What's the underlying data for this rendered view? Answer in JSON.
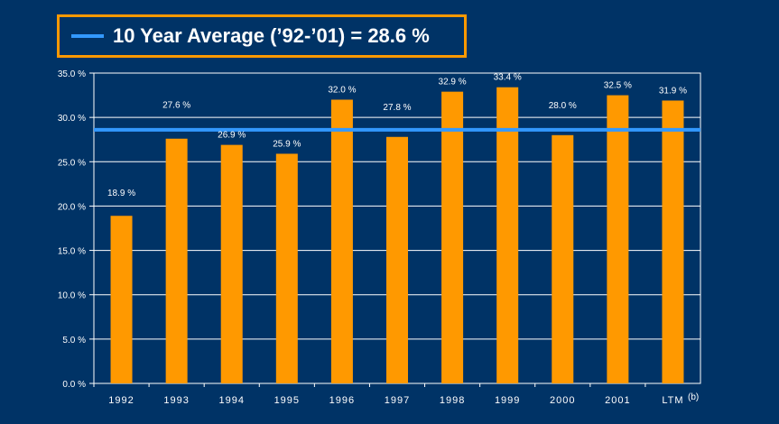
{
  "legend": {
    "label": "10 Year Average (’92-’01) = 28.6 %",
    "line_color": "#3399ff"
  },
  "chart_data": {
    "type": "bar",
    "categories": [
      "1992",
      "1993",
      "1994",
      "1995",
      "1996",
      "1997",
      "1998",
      "1999",
      "2000",
      "2001",
      "LTM"
    ],
    "values": [
      18.9,
      27.6,
      26.9,
      25.9,
      32.0,
      27.8,
      32.9,
      33.4,
      28.0,
      32.5,
      31.9
    ],
    "data_labels": [
      "18.9 %",
      "27.6 %",
      "26.9 %",
      "25.9 %",
      "32.0 %",
      "27.8 %",
      "32.9 %",
      "33.4 %",
      "28.0 %",
      "32.5 %",
      "31.9 %"
    ],
    "yticks": [
      0,
      5,
      10,
      15,
      20,
      25,
      30,
      35
    ],
    "ytick_labels": [
      "0.0 %",
      "5.0 %",
      "10.0 %",
      "15.0 %",
      "20.0 %",
      "25.0 %",
      "30.0 %",
      "35.0 %"
    ],
    "ylim": [
      0,
      35
    ],
    "average_line": 28.6,
    "grid": true,
    "bar_color": "#ff9900",
    "grid_color": "#ffffff",
    "footnote": "(b)"
  }
}
